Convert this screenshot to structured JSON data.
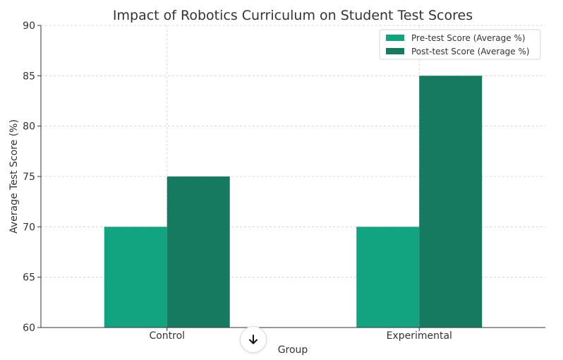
{
  "chart_data": {
    "type": "bar",
    "title": "Impact of Robotics Curriculum on Student Test Scores",
    "xlabel": "Group",
    "ylabel": "Average Test Score (%)",
    "categories": [
      "Control",
      "Experimental"
    ],
    "series": [
      {
        "name": "Pre-test Score (Average %)",
        "values": [
          70,
          70
        ],
        "color": "#12a381"
      },
      {
        "name": "Post-test Score (Average %)",
        "values": [
          75,
          85
        ],
        "color": "#167a61"
      }
    ],
    "ylim": [
      60,
      90
    ],
    "yticks": [
      60,
      65,
      70,
      75,
      80,
      85,
      90
    ],
    "grid": true,
    "legend_position": "top-right"
  },
  "controls": {
    "scroll_down_icon": "arrow-down-icon"
  }
}
